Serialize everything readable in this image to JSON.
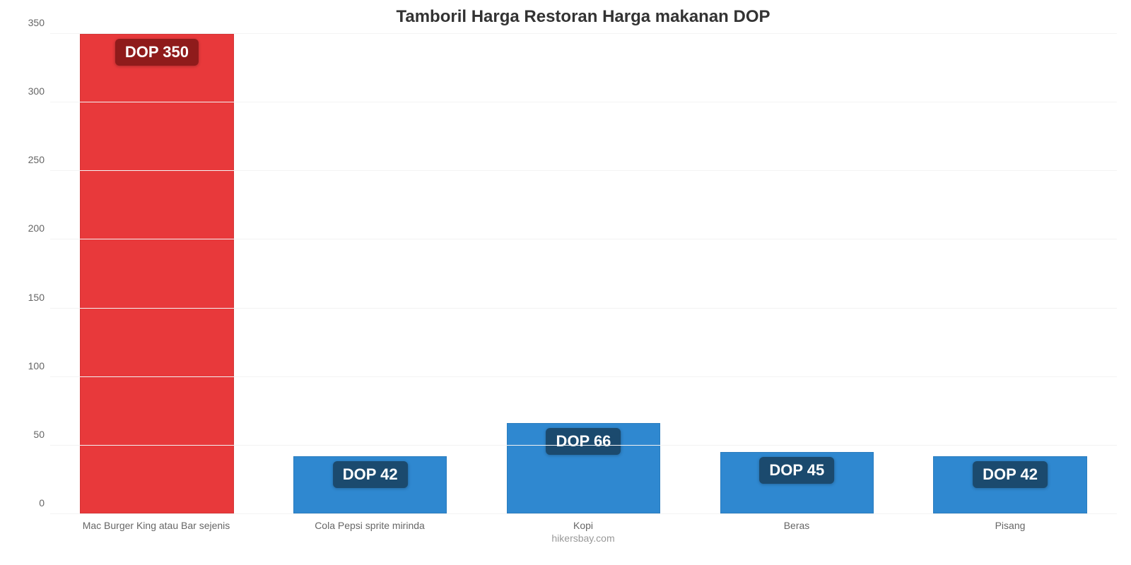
{
  "chart": {
    "type": "bar",
    "title": "Tamboril Harga Restoran Harga makanan DOP",
    "title_fontsize": 24,
    "title_color": "#333333",
    "background_color": "#ffffff",
    "grid_color": "#f3f3f3",
    "axis_text_color": "#666666",
    "source_text": "hikersbay.com",
    "source_color": "#999999",
    "ylim": [
      0,
      350
    ],
    "yticks": [
      0,
      50,
      100,
      150,
      200,
      250,
      300,
      350
    ],
    "ytick_fontsize": 14,
    "xlabel_fontsize": 14,
    "bar_width_pct": 72,
    "value_label_fontsize": 22,
    "value_label_text_color": "#ffffff",
    "value_label_radius": 6,
    "categories": [
      "Mac Burger King atau Bar sejenis",
      "Cola Pepsi sprite mirinda",
      "Kopi",
      "Beras",
      "Pisang"
    ],
    "values": [
      350,
      42,
      66,
      45,
      42
    ],
    "value_labels": [
      "DOP 350",
      "DOP 42",
      "DOP 66",
      "DOP 45",
      "DOP 42"
    ],
    "bar_colors": [
      "#e8393b",
      "#2f88d0",
      "#2f88d0",
      "#2f88d0",
      "#2f88d0"
    ],
    "value_label_bg": [
      "#8f1b1b",
      "#1b4a6e",
      "#1b4a6e",
      "#1b4a6e",
      "#1b4a6e"
    ]
  }
}
